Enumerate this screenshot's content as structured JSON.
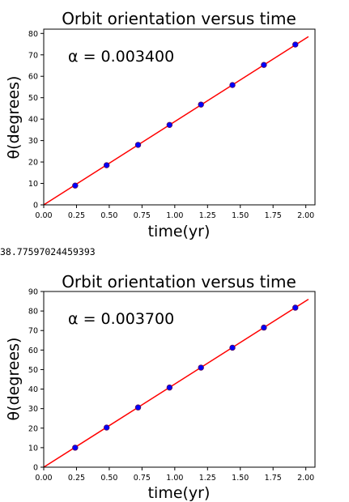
{
  "charts": [
    {
      "title": "Orbit orientation versus time",
      "annotation": "α = 0.003400",
      "xlabel": "time(yr)",
      "ylabel": "θ(degrees)",
      "xticks": [
        "0.00",
        "0.25",
        "0.50",
        "0.75",
        "1.00",
        "1.25",
        "1.50",
        "1.75",
        "2.00"
      ],
      "yticks": [
        "0",
        "10",
        "20",
        "30",
        "40",
        "50",
        "60",
        "70",
        "80"
      ]
    },
    {
      "title": "Orbit orientation versus time",
      "annotation": "α = 0.003700",
      "xlabel": "time(yr)",
      "ylabel": "θ(degrees)",
      "xticks": [
        "0.00",
        "0.25",
        "0.50",
        "0.75",
        "1.00",
        "1.25",
        "1.50",
        "1.75",
        "2.00"
      ],
      "yticks": [
        "0",
        "10",
        "20",
        "30",
        "40",
        "50",
        "60",
        "70",
        "80",
        "90"
      ]
    }
  ],
  "output_text": "38.77597024459393",
  "chart_data": [
    {
      "type": "scatter",
      "title": "Orbit orientation versus time",
      "annotation": "α = 0.003400",
      "xlabel": "time(yr)",
      "ylabel": "θ(degrees)",
      "xlim": [
        0,
        2.07
      ],
      "ylim": [
        0,
        82
      ],
      "x": [
        0.24,
        0.48,
        0.72,
        0.96,
        1.2,
        1.44,
        1.68,
        1.92
      ],
      "y": [
        9.0,
        18.5,
        28.0,
        37.3,
        46.8,
        55.9,
        65.3,
        74.8
      ],
      "fit_line": {
        "x": [
          0,
          2.02
        ],
        "y": [
          0,
          78.5
        ]
      },
      "point_color": "#0000ff",
      "line_color": "#ff0000",
      "grid": false
    },
    {
      "type": "scatter",
      "title": "Orbit orientation versus time",
      "annotation": "α = 0.003700",
      "xlabel": "time(yr)",
      "ylabel": "θ(degrees)",
      "xlim": [
        0,
        2.07
      ],
      "ylim": [
        0,
        90
      ],
      "x": [
        0.24,
        0.48,
        0.72,
        0.96,
        1.2,
        1.44,
        1.68,
        1.92
      ],
      "y": [
        10.0,
        20.3,
        30.6,
        40.8,
        51.0,
        61.2,
        71.5,
        81.7
      ],
      "fit_line": {
        "x": [
          0,
          2.02
        ],
        "y": [
          0,
          86.0
        ]
      },
      "point_color": "#0000ff",
      "line_color": "#ff0000",
      "grid": false
    }
  ]
}
